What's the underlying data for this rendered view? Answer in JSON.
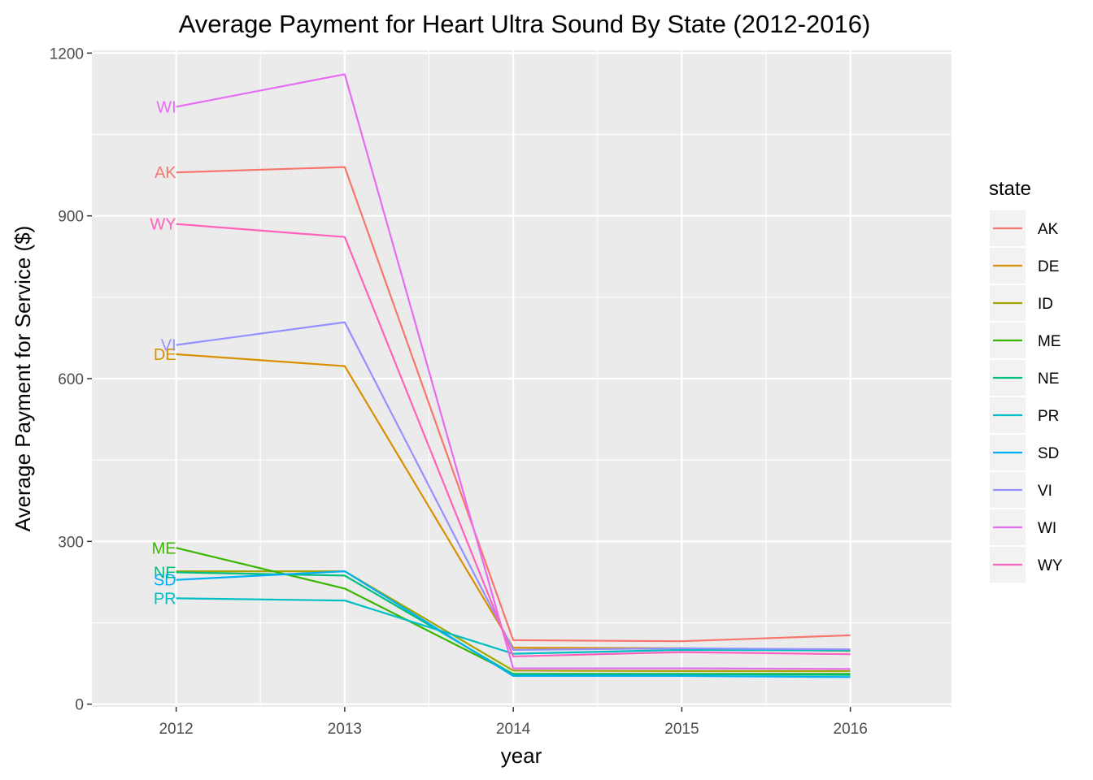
{
  "chart_data": {
    "type": "line",
    "title": "Average Payment for Heart Ultra Sound By State (2012-2016)",
    "xlabel": "year",
    "ylabel": "Average Payment for Service ($)",
    "x": [
      2012,
      2013,
      2014,
      2015,
      2016
    ],
    "x_tick_labels": [
      "2012",
      "2013",
      "2014",
      "2015",
      "2016"
    ],
    "xlim": [
      2011.5,
      2016.6
    ],
    "ylim": [
      -5,
      1205
    ],
    "y_ticks": [
      0,
      300,
      600,
      900,
      1200
    ],
    "y_tick_labels": [
      "0",
      "300",
      "600",
      "900",
      "1200"
    ],
    "grid": true,
    "legend_title": "state",
    "legend_position": "right",
    "series": [
      {
        "name": "AK",
        "color": "#F8766D",
        "label": "AK",
        "values": [
          980,
          990,
          118,
          116,
          127
        ]
      },
      {
        "name": "DE",
        "color": "#D89000",
        "label": "DE",
        "values": [
          645,
          623,
          104,
          103,
          98
        ]
      },
      {
        "name": "ID",
        "color": "#A3A500",
        "label": "",
        "values": [
          245,
          245,
          62,
          61,
          61
        ]
      },
      {
        "name": "ME",
        "color": "#39B600",
        "label": "ME",
        "values": [
          288,
          213,
          56,
          56,
          56
        ]
      },
      {
        "name": "NE",
        "color": "#00BF7D",
        "label": "NE",
        "values": [
          243,
          237,
          55,
          55,
          54
        ]
      },
      {
        "name": "PR",
        "color": "#00BFC4",
        "label": "PR",
        "values": [
          195,
          191,
          93,
          100,
          99
        ]
      },
      {
        "name": "SD",
        "color": "#00B0F6",
        "label": "SD",
        "values": [
          229,
          245,
          52,
          52,
          50
        ]
      },
      {
        "name": "VI",
        "color": "#9590FF",
        "label": "VI",
        "values": [
          662,
          704,
          100,
          103,
          101
        ]
      },
      {
        "name": "WI",
        "color": "#E76BF3",
        "label": "WI",
        "values": [
          1101,
          1161,
          66,
          66,
          65
        ]
      },
      {
        "name": "WY",
        "color": "#FF62BC",
        "label": "WY",
        "values": [
          885,
          861,
          88,
          96,
          92
        ]
      }
    ]
  }
}
